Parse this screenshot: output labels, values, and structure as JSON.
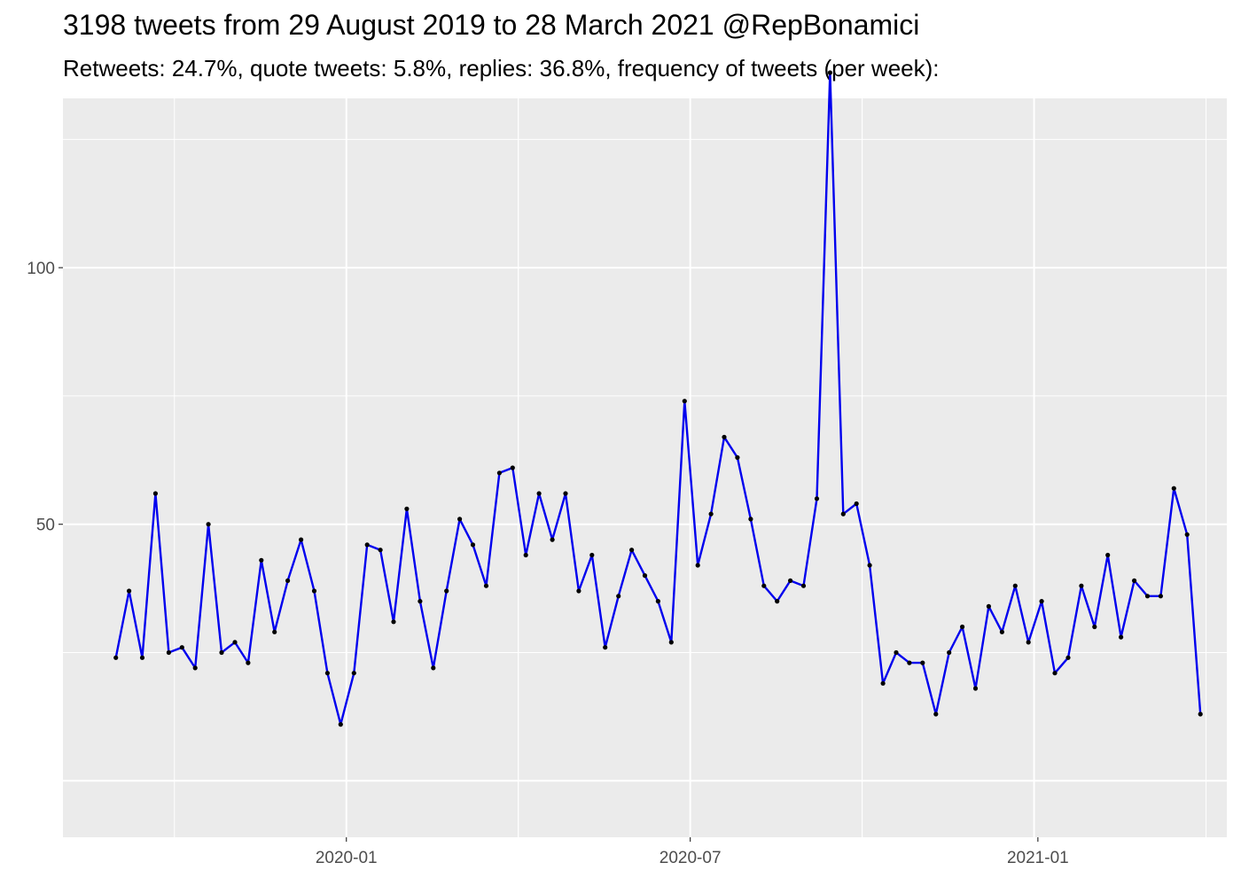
{
  "title": "3198 tweets from 29 August 2019 to 28 March 2021 @RepBonamici",
  "subtitle": "Retweets: 24.7%, quote tweets: 5.8%, replies: 36.8%, frequency of tweets (per week):",
  "colors": {
    "panel": "#ebebeb",
    "grid": "#ffffff",
    "line": "#0000ee",
    "point": "#000000",
    "axis_text": "#4d4d4d"
  },
  "chart_data": {
    "type": "line",
    "title": "3198 tweets from 29 August 2019 to 28 March 2021 @RepBonamici",
    "subtitle": "Retweets: 24.7%, quote tweets: 5.8%, replies: 36.8%, frequency of tweets (per week):",
    "xlabel": "",
    "ylabel": "",
    "x_ticks": [
      {
        "date": "2020-01-01",
        "label": "2020-01"
      },
      {
        "date": "2020-07-01",
        "label": "2020-07"
      },
      {
        "date": "2021-01-01",
        "label": "2021-01"
      }
    ],
    "y_ticks": [
      50,
      100
    ],
    "xlim": [
      "2019-08-04",
      "2021-04-11"
    ],
    "ylim": [
      -11,
      133
    ],
    "grid": true,
    "legend": "none",
    "series": [
      {
        "x": [
          "2019-09-01",
          "2019-09-08",
          "2019-09-15",
          "2019-09-22",
          "2019-09-29",
          "2019-10-06",
          "2019-10-13",
          "2019-10-20",
          "2019-10-27",
          "2019-11-03",
          "2019-11-10",
          "2019-11-17",
          "2019-11-24",
          "2019-12-01",
          "2019-12-08",
          "2019-12-15",
          "2019-12-22",
          "2019-12-29",
          "2020-01-05",
          "2020-01-12",
          "2020-01-19",
          "2020-01-26",
          "2020-02-02",
          "2020-02-09",
          "2020-02-16",
          "2020-02-23",
          "2020-03-01",
          "2020-03-08",
          "2020-03-15",
          "2020-03-22",
          "2020-03-29",
          "2020-04-05",
          "2020-04-12",
          "2020-04-19",
          "2020-04-26",
          "2020-05-03",
          "2020-05-10",
          "2020-05-17",
          "2020-05-24",
          "2020-05-31",
          "2020-06-07",
          "2020-06-14",
          "2020-06-21",
          "2020-06-28",
          "2020-07-05",
          "2020-07-12",
          "2020-07-19",
          "2020-07-26",
          "2020-08-02",
          "2020-08-09",
          "2020-08-16",
          "2020-08-23",
          "2020-08-30",
          "2020-09-06",
          "2020-09-13",
          "2020-09-20",
          "2020-09-27",
          "2020-10-04",
          "2020-10-11",
          "2020-10-18",
          "2020-10-25",
          "2020-11-01",
          "2020-11-08",
          "2020-11-15",
          "2020-11-22",
          "2020-11-29",
          "2020-12-06",
          "2020-12-13",
          "2020-12-20",
          "2020-12-27",
          "2021-01-03",
          "2021-01-10",
          "2021-01-17",
          "2021-01-24",
          "2021-01-31",
          "2021-02-07",
          "2021-02-14",
          "2021-02-21",
          "2021-02-28",
          "2021-03-07",
          "2021-03-14",
          "2021-03-21",
          "2021-03-28"
        ],
        "values": [
          24,
          37,
          24,
          56,
          25,
          26,
          22,
          50,
          25,
          27,
          23,
          43,
          29,
          39,
          47,
          37,
          21,
          11,
          21,
          46,
          45,
          31,
          53,
          35,
          22,
          37,
          51,
          46,
          38,
          60,
          61,
          44,
          56,
          47,
          56,
          37,
          44,
          26,
          36,
          45,
          40,
          35,
          27,
          74,
          42,
          52,
          67,
          63,
          51,
          38,
          35,
          39,
          38,
          55,
          138,
          52,
          54,
          42,
          19,
          25,
          23,
          23,
          13,
          25,
          30,
          18,
          34,
          29,
          38,
          27,
          35,
          21,
          24,
          38,
          30,
          44,
          28,
          39,
          36,
          36,
          57,
          48,
          13
        ]
      }
    ]
  }
}
